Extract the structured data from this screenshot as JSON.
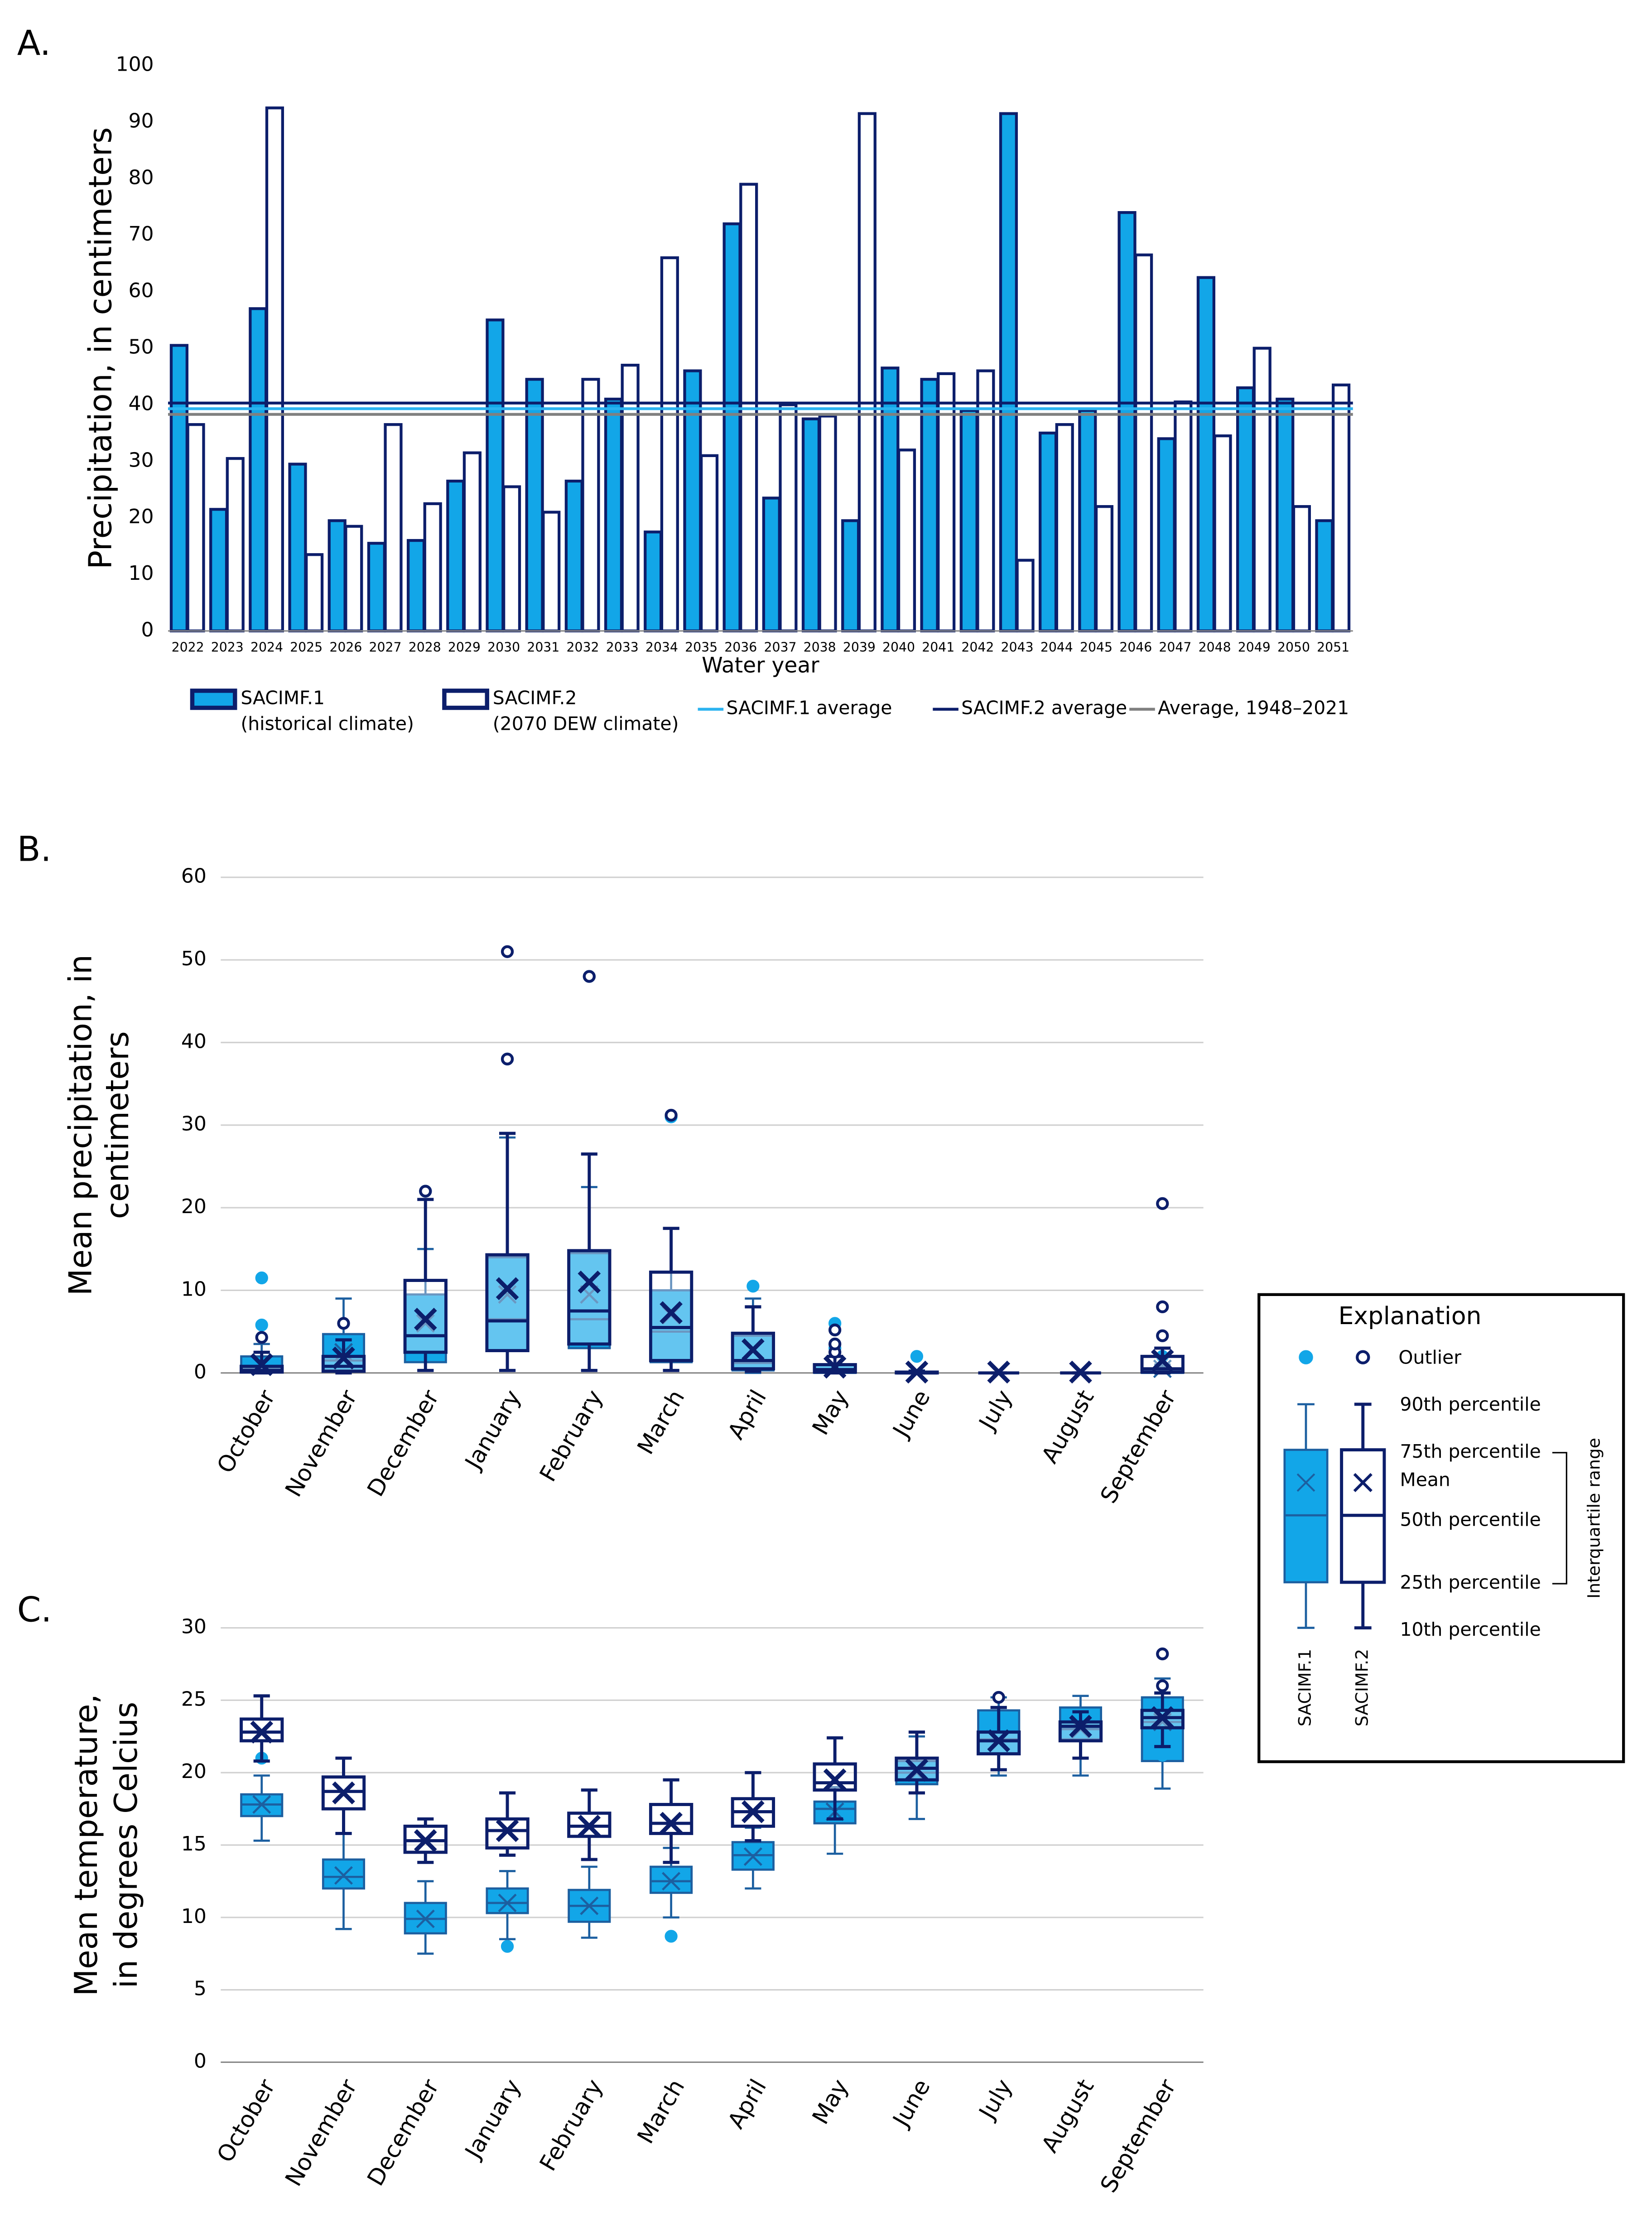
{
  "chart_data": [
    {
      "type": "bar",
      "label": "A.",
      "x_label": "Water year",
      "y_label": "Precipitation, in centimeters",
      "categories": [
        "2022",
        "2023",
        "2024",
        "2025",
        "2026",
        "2027",
        "2028",
        "2029",
        "2030",
        "2031",
        "2032",
        "2033",
        "2034",
        "2035",
        "2036",
        "2037",
        "2038",
        "2039",
        "2040",
        "2041",
        "2042",
        "2043",
        "2044",
        "2045",
        "2046",
        "2047",
        "2048",
        "2049",
        "2050",
        "2051"
      ],
      "series": [
        {
          "name": "SACIMF.1",
          "description": "(historical climate)",
          "color": "#12a6e8",
          "edge_color": "#0c1e6b",
          "values": [
            50.5,
            21.5,
            57,
            29.5,
            19.5,
            15.5,
            16,
            26.5,
            55,
            44.5,
            26.5,
            41,
            17.5,
            46,
            72,
            23.5,
            37.5,
            19.5,
            46.5,
            44.5,
            39,
            91.5,
            35,
            39,
            74,
            34,
            62.5,
            43,
            41,
            19.5
          ]
        },
        {
          "name": "SACIMF.2",
          "description": "(2070 DEW climate)",
          "color": "#ffffff",
          "edge_color": "#0c1e6b",
          "values": [
            36.5,
            30.5,
            92.5,
            13.5,
            18.5,
            36.5,
            22.5,
            31.5,
            25.5,
            21,
            44.5,
            47,
            66,
            31,
            79,
            40,
            38,
            91.5,
            32,
            45.5,
            46,
            12.5,
            36.5,
            22,
            66.5,
            40.5,
            34.5,
            50,
            22,
            43.5
          ]
        }
      ],
      "lines": [
        {
          "name": "SACIMF.1 average",
          "color": "#2bb3f0",
          "value": 39.3
        },
        {
          "name": "SACIMF.2 average",
          "color": "#0c1e6b",
          "value": 40.3
        },
        {
          "name": "Average, 1948–2021",
          "color": "#808080",
          "value": 38.3
        }
      ],
      "ylim": [
        0,
        100
      ],
      "yticks": [
        0,
        10,
        20,
        30,
        40,
        50,
        60,
        70,
        80,
        90,
        100
      ],
      "grid": false
    },
    {
      "type": "box",
      "label": "B.",
      "y_label": [
        "Mean precipitation, in",
        "centimeters"
      ],
      "categories": [
        "October",
        "November",
        "December",
        "January",
        "February",
        "March",
        "April",
        "May",
        "June",
        "July",
        "August",
        "September"
      ],
      "series": [
        {
          "name": "SACIMF.1",
          "color": "#12a6e8",
          "edge_color": "#1c5fa0",
          "p10": [
            0,
            0,
            0.3,
            0.3,
            0.3,
            0.3,
            0,
            0,
            0,
            0,
            0,
            0
          ],
          "p25": [
            0.1,
            0.3,
            1.3,
            2.7,
            3,
            1.3,
            0.3,
            0,
            0,
            0,
            0,
            0
          ],
          "median": [
            0.5,
            1.5,
            4.5,
            6.5,
            6.5,
            5,
            1.2,
            0.3,
            0,
            0,
            0,
            0.2
          ],
          "p75": [
            2,
            4.7,
            9.5,
            14,
            14.5,
            10,
            4.5,
            1,
            0.1,
            0,
            0,
            0.5
          ],
          "p90": [
            3.5,
            9,
            15,
            28.5,
            22.5,
            17.5,
            9,
            2,
            0.3,
            0,
            0,
            1
          ],
          "mean": [
            1.2,
            2.5,
            6,
            9.5,
            9.5,
            7,
            2.8,
            0.7,
            0.2,
            0.1,
            0.1,
            0.5
          ],
          "outliers": [
            [
              5.8,
              11.5
            ],
            [],
            [
              22
            ],
            [
              38
            ],
            [
              48
            ],
            [
              31
            ],
            [
              10.5
            ],
            [
              3,
              6
            ],
            [
              2
            ],
            [],
            [],
            [
              2
            ]
          ]
        },
        {
          "name": "SACIMF.2",
          "color": "#ffffff",
          "edge_color": "#0c1e6b",
          "p10": [
            0,
            0,
            0.3,
            0.3,
            0.3,
            0.3,
            0.2,
            0,
            0,
            0,
            0,
            0
          ],
          "p25": [
            0.1,
            0.2,
            2.5,
            2.7,
            3.5,
            1.5,
            0.5,
            0.1,
            0,
            0,
            0,
            0.1
          ],
          "median": [
            0.3,
            0.8,
            4.5,
            6.3,
            7.5,
            5.5,
            1.5,
            0.4,
            0,
            0,
            0,
            0.5
          ],
          "p75": [
            0.8,
            2,
            11.2,
            14.3,
            14.8,
            12.2,
            4.8,
            1,
            0.1,
            0,
            0,
            2
          ],
          "p90": [
            2.5,
            4,
            21,
            29,
            26.5,
            17.5,
            8,
            2,
            0.2,
            0,
            0,
            3
          ],
          "mean": [
            1,
            1.8,
            6.5,
            10.2,
            11,
            7.3,
            2.8,
            0.7,
            0.1,
            0.1,
            0.1,
            1.5
          ],
          "outliers": [
            [
              4.3
            ],
            [
              6
            ],
            [
              22
            ],
            [
              38,
              51
            ],
            [
              48
            ],
            [
              31.2
            ],
            [],
            [
              2.5,
              3.5,
              5.2
            ],
            [],
            [],
            [],
            [
              4.5,
              8,
              20.5
            ]
          ]
        }
      ],
      "ylim": [
        0,
        60
      ],
      "yticks": [
        0,
        10,
        20,
        30,
        40,
        50,
        60
      ],
      "grid": true
    },
    {
      "type": "box",
      "label": "C.",
      "y_label": [
        "Mean temperature,",
        "in degrees  Celcius"
      ],
      "categories": [
        "October",
        "November",
        "December",
        "January",
        "February",
        "March",
        "April",
        "May",
        "June",
        "July",
        "August",
        "September"
      ],
      "series": [
        {
          "name": "SACIMF.1",
          "color": "#12a6e8",
          "edge_color": "#1c5fa0",
          "p10": [
            15.3,
            9.2,
            7.5,
            8.5,
            8.6,
            10,
            12,
            14.4,
            16.8,
            19.8,
            19.8,
            18.9
          ],
          "p25": [
            17,
            12,
            8.9,
            10.3,
            9.7,
            11.7,
            13.3,
            16.5,
            19.2,
            21.3,
            22.3,
            20.8
          ],
          "median": [
            17.8,
            12.8,
            9.9,
            11,
            10.8,
            12.5,
            14.3,
            17.5,
            20,
            22.3,
            23,
            23.5
          ],
          "p75": [
            18.5,
            14,
            11,
            12,
            11.9,
            13.5,
            15.2,
            18,
            20.8,
            24.3,
            24.5,
            25.2
          ],
          "p90": [
            19.8,
            15.8,
            12.5,
            13.2,
            13.5,
            14.8,
            16.2,
            19,
            22.5,
            25.2,
            25.3,
            26.5
          ],
          "mean": [
            17.8,
            12.9,
            9.9,
            11,
            10.8,
            12.5,
            14.2,
            17.3,
            20,
            22.3,
            23,
            23.5
          ],
          "outliers": [
            [
              21
            ],
            [],
            [],
            [
              8
            ],
            [],
            [
              8.7
            ],
            [],
            [],
            [],
            [],
            [],
            [
              21.2
            ]
          ]
        },
        {
          "name": "SACIMF.2",
          "color": "#ffffff",
          "edge_color": "#0c1e6b",
          "p10": [
            20.8,
            15.8,
            13.8,
            14.3,
            14,
            13.8,
            15.3,
            16.8,
            18.6,
            20.2,
            21,
            21.8
          ],
          "p25": [
            22.2,
            17.5,
            14.5,
            14.8,
            15.6,
            15.8,
            16.3,
            18.8,
            19.5,
            21.3,
            22.2,
            23.1
          ],
          "median": [
            22.8,
            18.7,
            15.3,
            16,
            16.3,
            16.5,
            17.3,
            19.3,
            20.3,
            22.2,
            23.2,
            23.8
          ],
          "p75": [
            23.7,
            19.7,
            16.3,
            16.8,
            17.2,
            17.8,
            18.2,
            20.6,
            21,
            22.8,
            23.5,
            24.3
          ],
          "p90": [
            25.3,
            21,
            16.8,
            18.6,
            18.8,
            19.5,
            20,
            22.4,
            22.8,
            24.5,
            24.2,
            25.5
          ],
          "mean": [
            22.8,
            18.6,
            15.3,
            16,
            16.3,
            16.5,
            17.3,
            19.5,
            20.2,
            22.2,
            23.2,
            23.8
          ],
          "outliers": [
            [],
            [],
            [],
            [],
            [],
            [],
            [],
            [],
            [],
            [
              25.2
            ],
            [],
            [
              26,
              28.2
            ]
          ]
        }
      ],
      "ylim": [
        0,
        30
      ],
      "yticks": [
        0,
        5,
        10,
        15,
        20,
        25,
        30
      ],
      "grid": true
    }
  ],
  "explanation": {
    "title": "Explanation",
    "outlier": "Outlier",
    "p90": "90th percentile",
    "p75": "75th percentile",
    "mean": "Mean",
    "p50": "50th percentile",
    "p25": "25th percentile",
    "p10": "10th percentile",
    "range": "Interquartile range"
  }
}
